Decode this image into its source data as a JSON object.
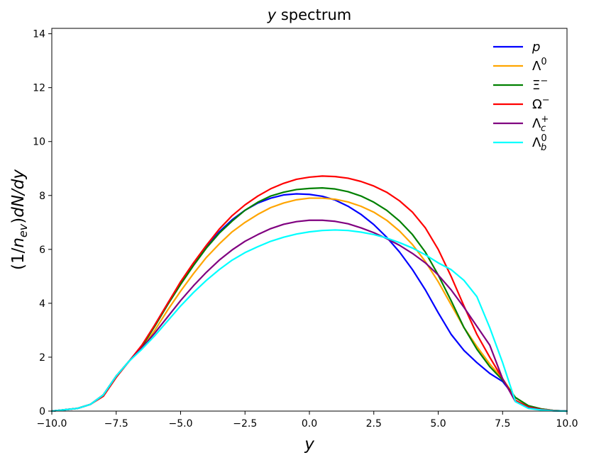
{
  "chart_data": {
    "type": "line",
    "title": "y spectrum",
    "title_parts": [
      "y",
      " spectrum"
    ],
    "xlabel": "y",
    "ylabel": "(1/n_ev)dN/dy",
    "ylabel_parts": [
      "(1/",
      "n",
      "ev",
      ")",
      "dN/dy"
    ],
    "xlim": [
      -10,
      10
    ],
    "ylim": [
      0,
      14.2
    ],
    "xticks": [
      -10,
      -7.5,
      -5,
      -2.5,
      0,
      2.5,
      5,
      7.5,
      10
    ],
    "xtick_labels": [
      "−10.0",
      "−7.5",
      "−5.0",
      "−2.5",
      "0.0",
      "2.5",
      "5.0",
      "7.5",
      "10.0"
    ],
    "yticks": [
      0,
      2,
      4,
      6,
      8,
      10,
      12,
      14
    ],
    "ytick_labels": [
      "0",
      "2",
      "4",
      "6",
      "8",
      "10",
      "12",
      "14"
    ],
    "grid": false,
    "legend_position": "top-right",
    "x": [
      -10,
      -9.5,
      -9,
      -8.5,
      -8,
      -7.5,
      -7,
      -6.5,
      -6,
      -5.5,
      -5,
      -4.5,
      -4,
      -3.5,
      -3,
      -2.5,
      -2,
      -1.5,
      -1,
      -0.5,
      0,
      0.5,
      1,
      1.5,
      2,
      2.5,
      3,
      3.5,
      4,
      4.5,
      5,
      5.5,
      6,
      6.5,
      7,
      7.5,
      8,
      8.5,
      9,
      9.5,
      10
    ],
    "series": [
      {
        "name": "p",
        "legend_parts": [
          "p",
          "",
          ""
        ],
        "color": "#0000ff",
        "values": [
          0,
          0.05,
          0.1,
          0.25,
          0.6,
          1.3,
          1.85,
          2.4,
          3.2,
          4.0,
          4.75,
          5.45,
          6.1,
          6.65,
          7.1,
          7.45,
          7.72,
          7.9,
          8.02,
          8.06,
          8.04,
          7.97,
          7.83,
          7.6,
          7.3,
          6.92,
          6.45,
          5.9,
          5.25,
          4.5,
          3.65,
          2.85,
          2.25,
          1.8,
          1.4,
          1.1,
          0.5,
          0.2,
          0.08,
          0.02,
          0
        ]
      },
      {
        "name": "Λ",
        "legend_parts": [
          "Λ",
          "0",
          ""
        ],
        "color": "#ffa500",
        "values": [
          0,
          0.05,
          0.1,
          0.25,
          0.6,
          1.3,
          1.85,
          2.35,
          3.0,
          3.75,
          4.45,
          5.1,
          5.7,
          6.2,
          6.65,
          7.0,
          7.3,
          7.55,
          7.72,
          7.84,
          7.9,
          7.9,
          7.86,
          7.76,
          7.6,
          7.38,
          7.08,
          6.68,
          6.18,
          5.55,
          4.8,
          3.95,
          3.1,
          2.4,
          1.75,
          1.2,
          0.5,
          0.2,
          0.08,
          0.02,
          0
        ]
      },
      {
        "name": "Ξ",
        "legend_parts": [
          "Ξ",
          "−",
          ""
        ],
        "color": "#008000",
        "values": [
          0,
          0.05,
          0.1,
          0.25,
          0.6,
          1.3,
          1.85,
          2.4,
          3.15,
          3.95,
          4.7,
          5.4,
          6.05,
          6.6,
          7.05,
          7.45,
          7.75,
          7.98,
          8.12,
          8.22,
          8.26,
          8.28,
          8.24,
          8.14,
          7.98,
          7.75,
          7.45,
          7.05,
          6.55,
          5.9,
          5.05,
          4.1,
          3.1,
          2.3,
          1.65,
          1.15,
          0.5,
          0.2,
          0.08,
          0.02,
          0
        ]
      },
      {
        "name": "Ω",
        "legend_parts": [
          "Ω",
          "−",
          ""
        ],
        "color": "#ff0000",
        "values": [
          0,
          0.05,
          0.1,
          0.25,
          0.55,
          1.25,
          1.85,
          2.45,
          3.2,
          4.0,
          4.8,
          5.5,
          6.15,
          6.75,
          7.25,
          7.65,
          7.98,
          8.25,
          8.45,
          8.6,
          8.68,
          8.72,
          8.7,
          8.64,
          8.52,
          8.35,
          8.12,
          7.8,
          7.38,
          6.8,
          6.0,
          5.0,
          3.9,
          2.85,
          2.0,
          1.2,
          0.4,
          0.15,
          0.06,
          0.02,
          0
        ]
      },
      {
        "name": "Λ",
        "legend_parts": [
          "Λ",
          "+",
          "c"
        ],
        "color": "#800080",
        "values": [
          0,
          0.05,
          0.1,
          0.25,
          0.6,
          1.3,
          1.85,
          2.35,
          2.9,
          3.5,
          4.1,
          4.65,
          5.15,
          5.6,
          5.98,
          6.3,
          6.55,
          6.77,
          6.93,
          7.03,
          7.08,
          7.08,
          7.04,
          6.95,
          6.8,
          6.62,
          6.4,
          6.15,
          5.85,
          5.5,
          5.05,
          4.5,
          3.85,
          3.15,
          2.45,
          1.2,
          0.35,
          0.12,
          0.05,
          0.01,
          0
        ]
      },
      {
        "name": "Λ",
        "legend_parts": [
          "Λ",
          "0",
          "b"
        ],
        "color": "#00ffff",
        "values": [
          0,
          0.05,
          0.1,
          0.25,
          0.6,
          1.3,
          1.85,
          2.3,
          2.8,
          3.35,
          3.9,
          4.4,
          4.85,
          5.25,
          5.6,
          5.88,
          6.1,
          6.3,
          6.45,
          6.57,
          6.65,
          6.7,
          6.72,
          6.7,
          6.64,
          6.55,
          6.42,
          6.25,
          6.05,
          5.8,
          5.5,
          5.25,
          4.85,
          4.25,
          3.1,
          1.8,
          0.35,
          0.1,
          0.04,
          0.01,
          0
        ]
      }
    ]
  }
}
